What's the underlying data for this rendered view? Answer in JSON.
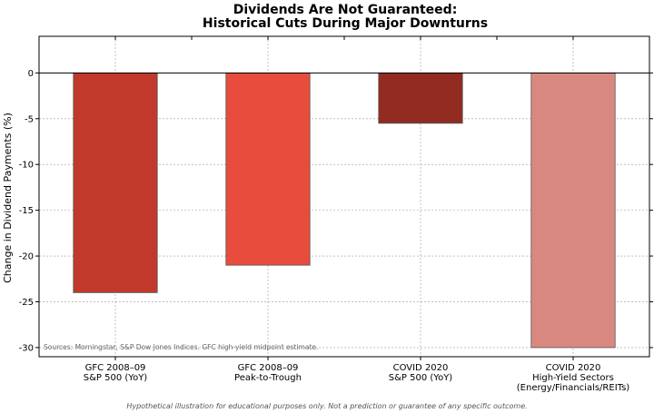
{
  "chart_data": {
    "type": "bar",
    "title": [
      "Dividends Are Not Guaranteed:",
      "Historical Cuts During Major Downturns"
    ],
    "ylabel": "Change in Dividend Payments (%)",
    "xlabel": "",
    "ylim": [
      -31,
      4
    ],
    "yticks": [
      0,
      -5,
      -10,
      -15,
      -20,
      -25,
      -30
    ],
    "grid": true,
    "categories": [
      [
        "GFC 2008–09",
        "S&P 500 (YoY)"
      ],
      [
        "GFC 2008–09",
        "Peak-to-Trough"
      ],
      [
        "COVID 2020",
        "S&P 500 (YoY)"
      ],
      [
        "COVID 2020",
        "High-Yield Sectors",
        "(Energy/Financials/REITs)"
      ]
    ],
    "values": [
      -24,
      -21,
      -5.5,
      -30
    ],
    "colors": [
      "#c0392b",
      "#e74c3c",
      "#922b21",
      "#d98880"
    ],
    "source_note": "Sources: Morningstar, S&P Dow Jones Indices. GFC high-yield midpoint estimate.",
    "footer_note": "Hypothetical illustration for educational purposes only. Not a prediction or guarantee of any specific outcome."
  }
}
